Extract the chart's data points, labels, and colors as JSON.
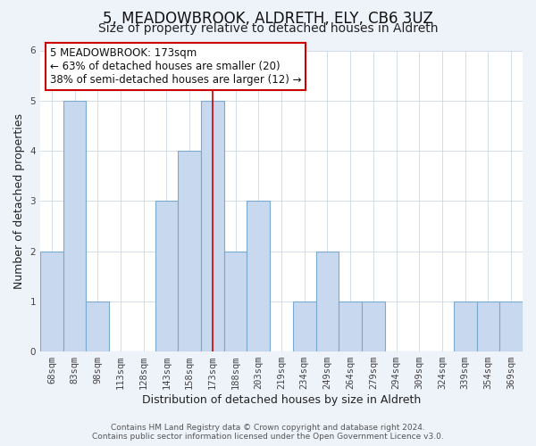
{
  "title": "5, MEADOWBROOK, ALDRETH, ELY, CB6 3UZ",
  "subtitle": "Size of property relative to detached houses in Aldreth",
  "xlabel": "Distribution of detached houses by size in Aldreth",
  "ylabel": "Number of detached properties",
  "bar_labels": [
    "68sqm",
    "83sqm",
    "98sqm",
    "113sqm",
    "128sqm",
    "143sqm",
    "158sqm",
    "173sqm",
    "188sqm",
    "203sqm",
    "219sqm",
    "234sqm",
    "249sqm",
    "264sqm",
    "279sqm",
    "294sqm",
    "309sqm",
    "324sqm",
    "339sqm",
    "354sqm",
    "369sqm"
  ],
  "bar_values": [
    2,
    5,
    1,
    0,
    0,
    3,
    4,
    5,
    2,
    3,
    0,
    1,
    2,
    1,
    1,
    0,
    0,
    0,
    1,
    1,
    1
  ],
  "highlight_index": 7,
  "highlight_line_color": "#cc0000",
  "bar_color": "#c8d8ee",
  "bar_edge_color": "#7aaad0",
  "annotation_box_facecolor": "#ffffff",
  "annotation_box_edgecolor": "#cc0000",
  "annotation_text_line1": "5 MEADOWBROOK: 173sqm",
  "annotation_text_line2": "← 63% of detached houses are smaller (20)",
  "annotation_text_line3": "38% of semi-detached houses are larger (12) →",
  "ylim": [
    0,
    6
  ],
  "yticks": [
    0,
    1,
    2,
    3,
    4,
    5,
    6
  ],
  "footer_line1": "Contains HM Land Registry data © Crown copyright and database right 2024.",
  "footer_line2": "Contains public sector information licensed under the Open Government Licence v3.0.",
  "title_fontsize": 12,
  "subtitle_fontsize": 10,
  "axis_label_fontsize": 9,
  "tick_fontsize": 7.5,
  "annotation_fontsize": 8.5,
  "footer_fontsize": 6.5,
  "background_color": "#eef2f9",
  "plot_background_color": "#ffffff",
  "grid_color": "#ccd8e8"
}
